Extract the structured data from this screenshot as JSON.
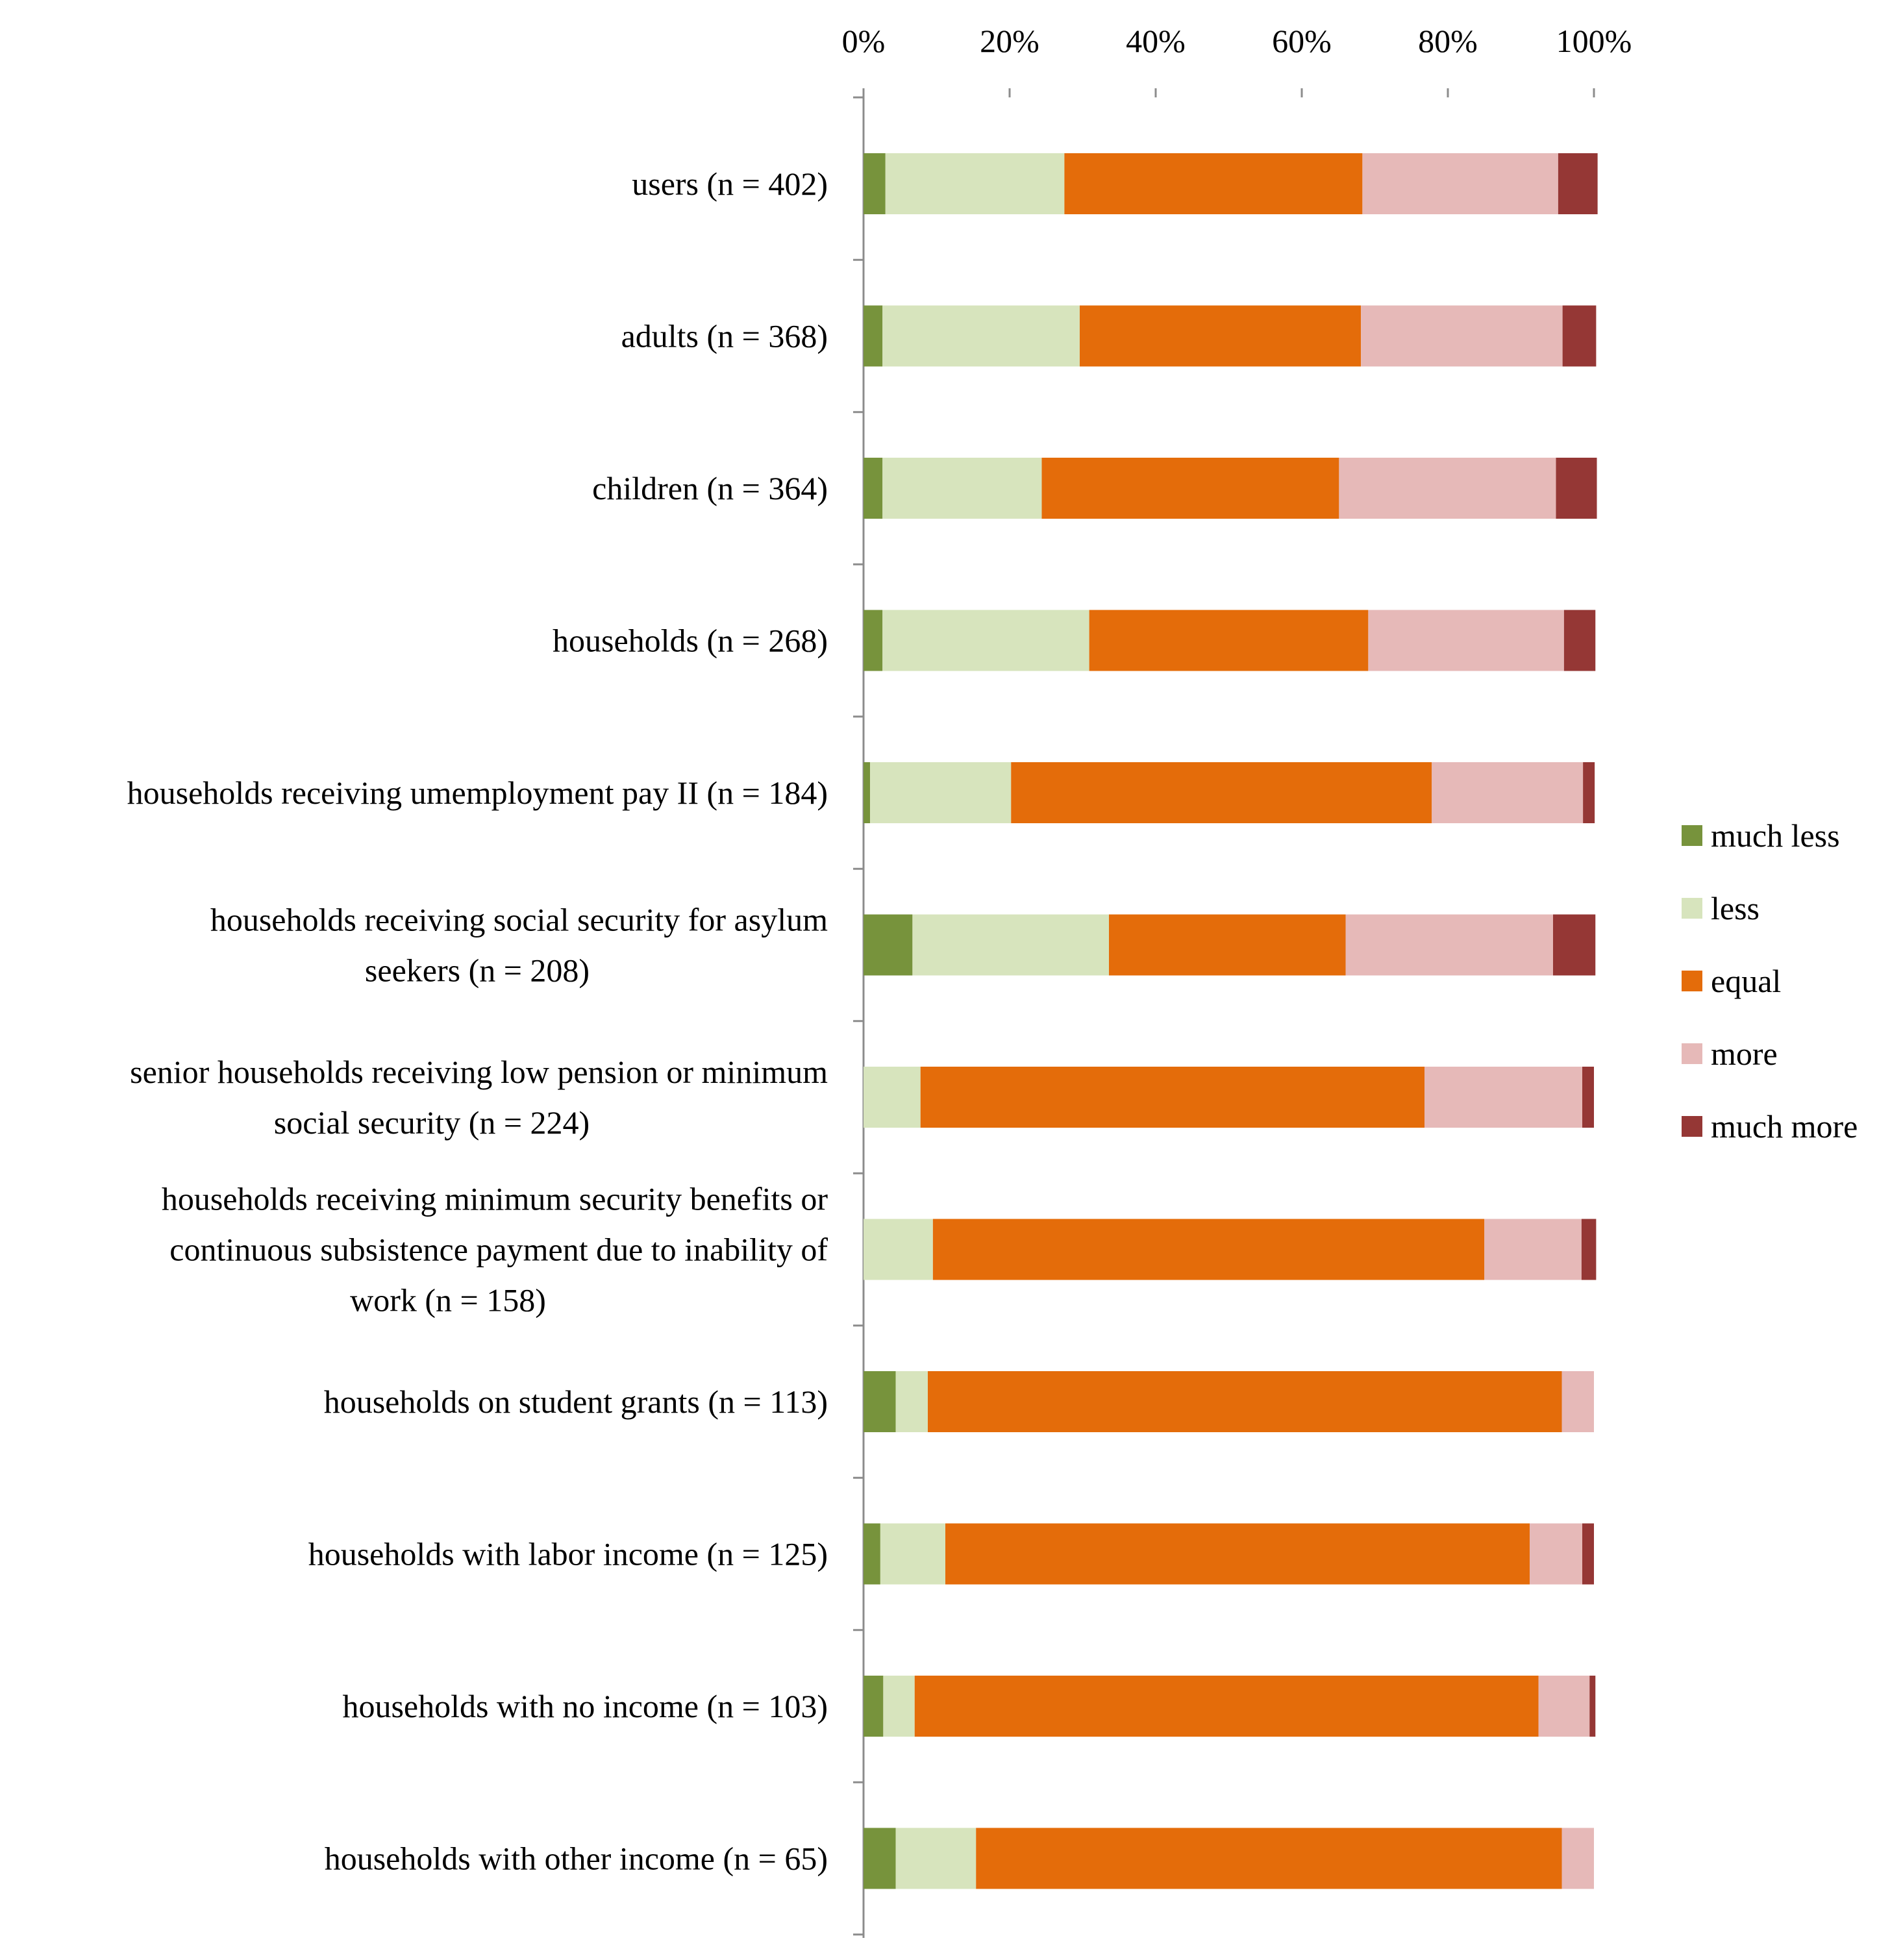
{
  "chart_data": {
    "type": "bar",
    "orientation": "horizontal",
    "stacked": true,
    "percent_stacked": true,
    "x_ticks": [
      "0%",
      "20%",
      "40%",
      "60%",
      "80%",
      "100%"
    ],
    "xlim": [
      0,
      100
    ],
    "x_axis_position": "top",
    "legend_position": "right",
    "categories": [
      [
        "users (n = 402)"
      ],
      [
        "adults (n = 368)"
      ],
      [
        "children (n = 364)"
      ],
      [
        "households (n = 268)"
      ],
      [
        "households receiving umemployment pay II (n = 184)"
      ],
      [
        "households receiving social security for asylum",
        "seekers (n = 208)"
      ],
      [
        "senior households receiving low pension or minimum",
        "social security (n = 224)"
      ],
      [
        "households receiving minimum security benefits or",
        "continuous subsistence payment due to inability of",
        "work (n = 158)"
      ],
      [
        "households on student grants (n = 113)"
      ],
      [
        "households with labor income (n = 125)"
      ],
      [
        "households with no income (n = 103)"
      ],
      [
        "households with other income (n = 65)"
      ]
    ],
    "series": [
      {
        "name": "much less",
        "color": "#77933c",
        "values": [
          3.0,
          2.6,
          2.6,
          2.6,
          0.9,
          6.7,
          0.0,
          0.0,
          4.4,
          2.3,
          2.7,
          4.4
        ]
      },
      {
        "name": "less",
        "color": "#d7e4bd",
        "values": [
          24.5,
          27.0,
          21.8,
          28.3,
          19.3,
          26.9,
          7.8,
          9.5,
          4.4,
          8.9,
          4.3,
          11.0
        ]
      },
      {
        "name": "equal",
        "color": "#e46c0a",
        "values": [
          40.8,
          38.5,
          40.7,
          38.2,
          57.6,
          32.4,
          69.0,
          75.5,
          86.8,
          80.0,
          85.4,
          80.2
        ]
      },
      {
        "name": "more",
        "color": "#e6b9b8",
        "values": [
          26.8,
          27.6,
          29.7,
          26.8,
          20.7,
          28.4,
          21.6,
          13.3,
          4.4,
          7.2,
          7.0,
          4.4
        ]
      },
      {
        "name": "much more",
        "color": "#953735",
        "values": [
          5.4,
          4.6,
          5.6,
          4.3,
          1.6,
          5.8,
          1.6,
          2.0,
          0.0,
          1.6,
          0.8,
          0.0
        ]
      }
    ]
  }
}
